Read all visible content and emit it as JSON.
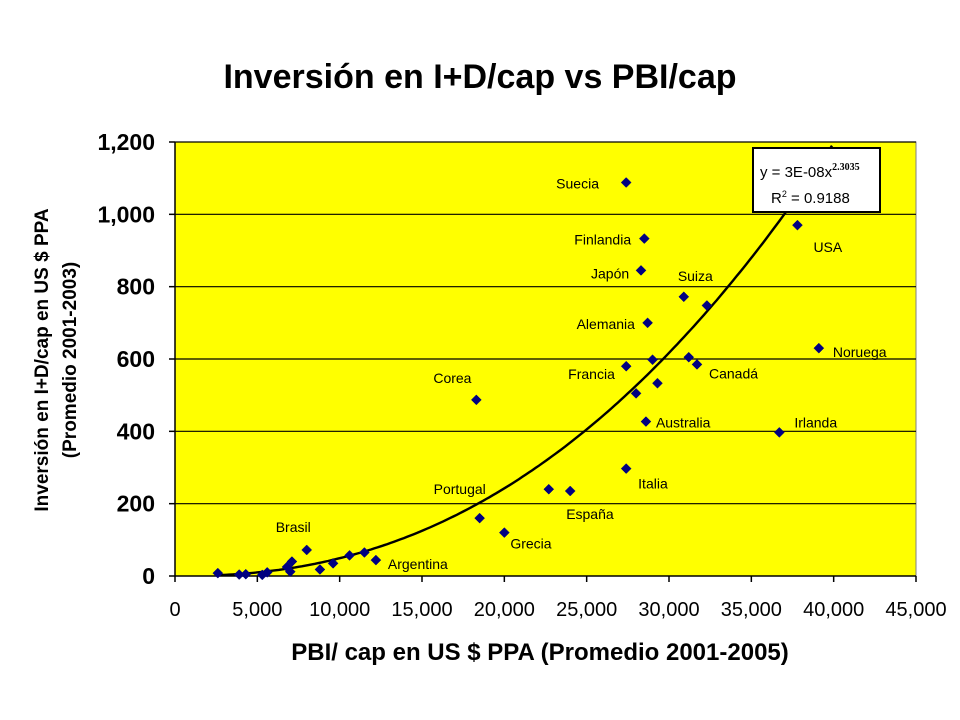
{
  "colors": {
    "plot_background": "#ffff00",
    "marker": "#000080",
    "gridline": "#000000",
    "trendline": "#000000"
  },
  "chart_data": {
    "type": "scatter",
    "title": "Inversión en I+D/cap  vs PBI/cap",
    "xlabel": "PBI/ cap en US $ PPA  (Promedio 2001-2005)",
    "ylabel_line1": "Inversión en I+D/cap en US $ PPA",
    "ylabel_line2": "(Promedio 2001-2003)",
    "xlim": [
      0,
      45000
    ],
    "ylim": [
      0,
      1200
    ],
    "x_ticks": [
      0,
      5000,
      10000,
      15000,
      20000,
      25000,
      30000,
      35000,
      40000,
      45000
    ],
    "x_tick_labels": [
      "0",
      "5,000",
      "10,000",
      "15,000",
      "20,000",
      "25,000",
      "30,000",
      "35,000",
      "40,000",
      "45,000"
    ],
    "y_ticks": [
      0,
      200,
      400,
      600,
      800,
      1000,
      1200
    ],
    "y_tick_labels": [
      "0",
      "200",
      "400",
      "600",
      "800",
      "1,000",
      "1,200"
    ],
    "grid": "horizontal",
    "marker": "diamond",
    "points": [
      {
        "x": 2600,
        "y": 8,
        "label": ""
      },
      {
        "x": 3900,
        "y": 4,
        "label": ""
      },
      {
        "x": 4300,
        "y": 5,
        "label": ""
      },
      {
        "x": 5300,
        "y": 3,
        "label": ""
      },
      {
        "x": 5600,
        "y": 10,
        "label": ""
      },
      {
        "x": 6800,
        "y": 25,
        "label": ""
      },
      {
        "x": 7000,
        "y": 12,
        "label": ""
      },
      {
        "x": 7100,
        "y": 40,
        "label": ""
      },
      {
        "x": 8000,
        "y": 72,
        "label": "Brasil"
      },
      {
        "x": 8800,
        "y": 18,
        "label": ""
      },
      {
        "x": 9600,
        "y": 35,
        "label": ""
      },
      {
        "x": 10600,
        "y": 57,
        "label": ""
      },
      {
        "x": 11500,
        "y": 65,
        "label": ""
      },
      {
        "x": 12200,
        "y": 44,
        "label": "Argentina"
      },
      {
        "x": 18300,
        "y": 487,
        "label": "Corea"
      },
      {
        "x": 18500,
        "y": 160,
        "label": "Portugal"
      },
      {
        "x": 20000,
        "y": 120,
        "label": "Grecia"
      },
      {
        "x": 22700,
        "y": 240,
        "label": ""
      },
      {
        "x": 24000,
        "y": 235,
        "label": "España"
      },
      {
        "x": 27400,
        "y": 1088,
        "label": "Suecia"
      },
      {
        "x": 27400,
        "y": 580,
        "label": "Francia"
      },
      {
        "x": 27400,
        "y": 297,
        "label": "Italia"
      },
      {
        "x": 28000,
        "y": 505,
        "label": ""
      },
      {
        "x": 28300,
        "y": 845,
        "label": "Japón"
      },
      {
        "x": 28500,
        "y": 933,
        "label": "Finlandia"
      },
      {
        "x": 28700,
        "y": 700,
        "label": "Alemania"
      },
      {
        "x": 28600,
        "y": 427,
        "label": "Australia"
      },
      {
        "x": 29000,
        "y": 598,
        "label": ""
      },
      {
        "x": 29300,
        "y": 533,
        "label": ""
      },
      {
        "x": 30900,
        "y": 772,
        "label": "Suiza"
      },
      {
        "x": 31200,
        "y": 605,
        "label": ""
      },
      {
        "x": 31700,
        "y": 585,
        "label": "Canadá"
      },
      {
        "x": 32300,
        "y": 748,
        "label": ""
      },
      {
        "x": 36700,
        "y": 397,
        "label": "Irlanda"
      },
      {
        "x": 37800,
        "y": 970,
        "label": "USA"
      },
      {
        "x": 39100,
        "y": 630,
        "label": "Noruega"
      }
    ],
    "trendline": {
      "type": "power",
      "coefficient": 3e-08,
      "exponent": 2.3035,
      "equation_text": "y = 3E-08x",
      "equation_exponent": "2.3035",
      "r_squared_text": "R",
      "r_squared_sup": "2",
      "r_squared_value": " = 0.9188"
    }
  }
}
